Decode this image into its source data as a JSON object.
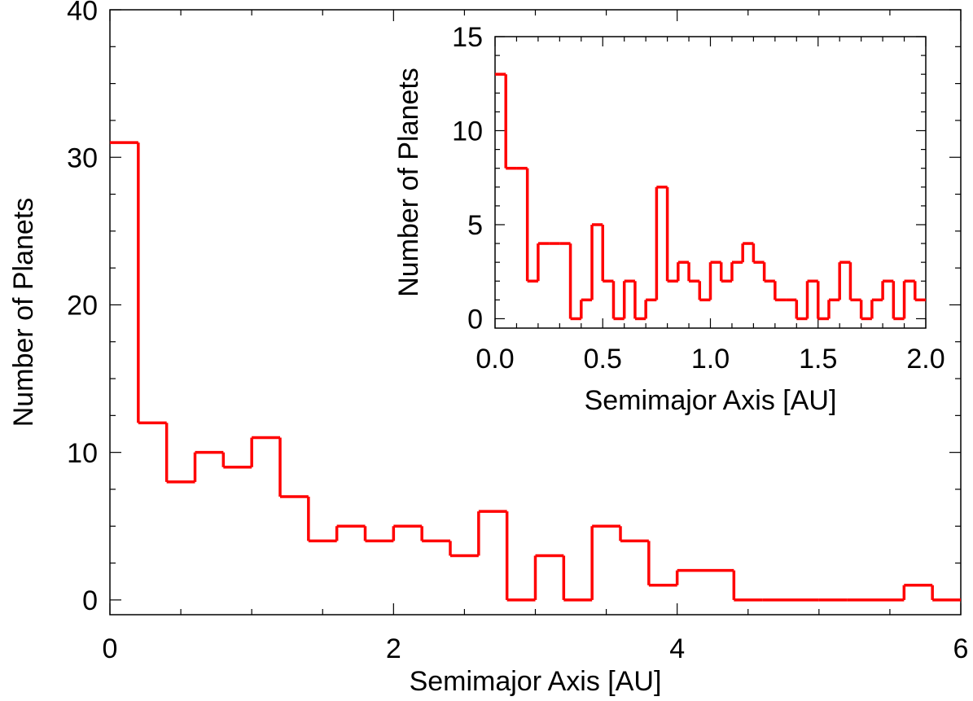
{
  "colors": {
    "series": "#ff0000",
    "axis": "#000000",
    "background": "#ffffff"
  },
  "chart_data": [
    {
      "id": "main",
      "type": "histogram",
      "xlabel": "Semimajor Axis [AU]",
      "ylabel": "Number of Planets",
      "xlim": [
        0,
        6
      ],
      "ylim": [
        -1,
        40
      ],
      "xticks": [
        0,
        2,
        4,
        6
      ],
      "xtick_labels": [
        "0",
        "2",
        "4",
        "6"
      ],
      "yticks": [
        0,
        10,
        20,
        30,
        40
      ],
      "ytick_labels": [
        "0",
        "10",
        "20",
        "30",
        "40"
      ],
      "grid": false,
      "bin_width": 0.2,
      "bins_x": [
        0.1,
        0.3,
        0.5,
        0.7,
        0.9,
        1.1,
        1.3,
        1.5,
        1.7,
        1.9,
        2.1,
        2.3,
        2.5,
        2.7,
        2.9,
        3.1,
        3.3,
        3.5,
        3.7,
        3.9,
        4.1,
        4.3,
        4.5,
        4.7,
        4.9,
        5.1,
        5.3,
        5.5,
        5.7,
        5.9
      ],
      "values": [
        31,
        12,
        8,
        10,
        9,
        11,
        7,
        4,
        5,
        4,
        5,
        4,
        3,
        6,
        0,
        3,
        0,
        5,
        4,
        1,
        2,
        2,
        0,
        0,
        0,
        0,
        0,
        0,
        1,
        0
      ]
    },
    {
      "id": "inset",
      "type": "histogram",
      "xlabel": "Semimajor Axis [AU]",
      "ylabel": "Number of Planets",
      "xlim": [
        0,
        2
      ],
      "ylim": [
        -0.5,
        15
      ],
      "xticks": [
        0.0,
        0.5,
        1.0,
        1.5,
        2.0
      ],
      "xtick_labels": [
        "0.0",
        "0.5",
        "1.0",
        "1.5",
        "2.0"
      ],
      "yticks": [
        0,
        5,
        10,
        15
      ],
      "ytick_labels": [
        "0",
        "5",
        "10",
        "15"
      ],
      "grid": false,
      "bin_width": 0.05,
      "bins_x": [
        0.025,
        0.075,
        0.125,
        0.175,
        0.225,
        0.275,
        0.325,
        0.375,
        0.425,
        0.475,
        0.525,
        0.575,
        0.625,
        0.675,
        0.725,
        0.775,
        0.825,
        0.875,
        0.925,
        0.975,
        1.025,
        1.075,
        1.125,
        1.175,
        1.225,
        1.275,
        1.325,
        1.375,
        1.425,
        1.475,
        1.525,
        1.575,
        1.625,
        1.675,
        1.725,
        1.775,
        1.825,
        1.875,
        1.925,
        1.975
      ],
      "values": [
        13,
        8,
        8,
        2,
        4,
        4,
        4,
        0,
        1,
        5,
        2,
        0,
        2,
        0,
        1,
        7,
        2,
        3,
        2,
        1,
        3,
        2,
        3,
        4,
        3,
        2,
        1,
        1,
        0,
        2,
        0,
        1,
        3,
        1,
        0,
        1,
        2,
        0,
        2,
        1
      ]
    }
  ]
}
